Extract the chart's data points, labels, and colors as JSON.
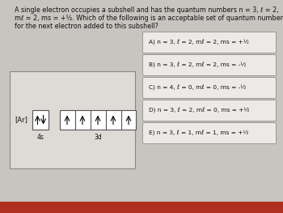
{
  "bg_color": "#c8c4c0",
  "panel_bg": "#dedad6",
  "question_text_line1": "A single electron occupies a subshell and has the quantum numbers n = 3, ℓ = 2,",
  "question_text_line2": "mℓ = 2, ms = +½. Which of the following is an acceptable set of quantum numbers",
  "question_text_line3": "for the next electron added to this subshell?",
  "question_fontsize": 5.8,
  "ar_label": "[Ar]",
  "orbital_4s_label": "4s",
  "orbital_3d_label": "3d",
  "options": [
    "A) n = 3, ℓ = 2, mℓ = 2, ms = +½",
    "B) n = 3, ℓ = 2, mℓ = 2, ms = -½",
    "C) n = 4, ℓ = 0, mℓ = 0, ms = -½",
    "D) n = 3, ℓ = 2, mℓ = 0, ms = +½",
    "E) n = 3, ℓ = 1, mℓ = 1, ms = +½"
  ],
  "option_box_color": "#eceae6",
  "option_border_color": "#999999",
  "text_color": "#111111",
  "bottom_bar_color": "#b03020"
}
